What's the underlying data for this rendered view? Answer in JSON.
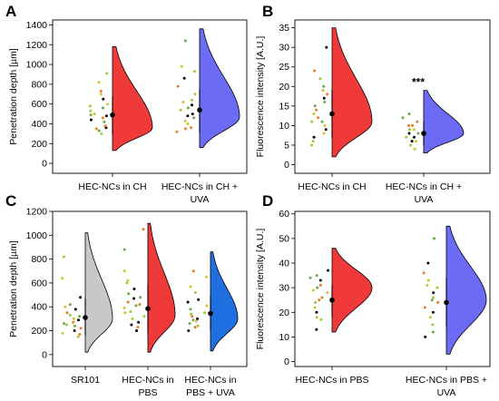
{
  "chart_data": [
    {
      "panel_label": "A",
      "type": "violin",
      "ylabel": "Penetration depth [µm]",
      "ylim": [
        -100,
        1450
      ],
      "yticks": [
        0,
        200,
        400,
        600,
        800,
        1000,
        1200,
        1400
      ],
      "categories": [
        "HEC-NCs in CH",
        "HEC-NCs in CH +\nUVA"
      ],
      "series": [
        {
          "color": "#f03a3a",
          "min": 130,
          "max": 1180,
          "mode": 360,
          "mean": 490,
          "sd_low": 300,
          "sd_high": 680,
          "points": [
            440,
            530,
            600,
            730,
            490,
            360,
            300,
            820,
            350,
            420,
            480,
            580,
            700,
            380,
            330,
            650,
            910,
            500,
            460,
            560
          ]
        },
        {
          "color": "#6b6bf5",
          "min": 160,
          "max": 1360,
          "mode": 470,
          "mean": 540,
          "sd_low": 310,
          "sd_high": 750,
          "points": [
            500,
            540,
            620,
            780,
            1240,
            860,
            930,
            430,
            360,
            460,
            590,
            700,
            400,
            320,
            560,
            480,
            640,
            980,
            350
          ]
        }
      ],
      "significance": ""
    },
    {
      "panel_label": "B",
      "type": "violin",
      "ylabel": "Fluorescence intensity [A.U.]",
      "ylim": [
        -2.2,
        37
      ],
      "yticks": [
        0,
        5,
        10,
        15,
        20,
        25,
        30,
        35
      ],
      "categories": [
        "HEC-NCs in CH",
        "HEC-NCs in CH +\nUVA"
      ],
      "series": [
        {
          "color": "#f03a3a",
          "min": 2,
          "max": 35,
          "mode": 11,
          "mean": 13,
          "sd_low": 7,
          "sd_high": 19,
          "points": [
            9,
            11,
            13,
            18,
            20,
            30,
            6,
            8,
            12,
            15,
            17,
            22,
            10,
            14,
            16,
            7,
            5,
            19,
            24,
            11
          ]
        },
        {
          "color": "#6b6bf5",
          "min": 3,
          "max": 19,
          "mode": 8,
          "mean": 8,
          "sd_low": 5,
          "sd_high": 11,
          "points": [
            6,
            7,
            9,
            10,
            12,
            8,
            5,
            4,
            11,
            13,
            7,
            9,
            6,
            10,
            8
          ]
        }
      ],
      "significance": "***"
    },
    {
      "panel_label": "C",
      "type": "violin",
      "ylabel": "Penetration depth [µm]",
      "ylim": [
        -100,
        1200
      ],
      "yticks": [
        0,
        200,
        400,
        600,
        800,
        1000,
        1200
      ],
      "categories": [
        "SR101",
        "HEC-NCs in\nPBS",
        "HEC-NCs in\nPBS + UVA"
      ],
      "series": [
        {
          "color": "#c8c8c8",
          "min": 20,
          "max": 1020,
          "mode": 300,
          "mean": 310,
          "sd_low": 160,
          "sd_high": 470,
          "points": [
            200,
            250,
            300,
            350,
            420,
            480,
            150,
            180,
            270,
            320,
            380,
            820,
            640,
            220,
            260,
            290,
            330,
            400,
            170,
            240
          ]
        },
        {
          "color": "#f03a3a",
          "min": 20,
          "max": 1100,
          "mode": 330,
          "mean": 385,
          "sd_low": 180,
          "sd_high": 590,
          "points": [
            250,
            300,
            350,
            420,
            480,
            550,
            600,
            700,
            1050,
            880,
            200,
            320,
            390,
            440,
            510,
            270,
            360,
            620,
            230,
            410,
            470
          ]
        },
        {
          "color": "#1f6fe0",
          "min": 30,
          "max": 860,
          "mode": 300,
          "mean": 345,
          "sd_low": 200,
          "sd_high": 490,
          "points": [
            200,
            240,
            280,
            320,
            380,
            440,
            520,
            650,
            700,
            260,
            300,
            350,
            410,
            230,
            290,
            460,
            340,
            570
          ]
        }
      ],
      "significance": ""
    },
    {
      "panel_label": "D",
      "type": "violin",
      "ylabel": "Fluorescence intensity [A.U.]",
      "ylim": [
        -2,
        61
      ],
      "yticks": [
        0,
        10,
        20,
        30,
        40,
        50,
        60
      ],
      "categories": [
        "HEC-NCs in PBS",
        "HEC-NCs in PBS +\nUVA"
      ],
      "series": [
        {
          "color": "#f03a3a",
          "min": 12,
          "max": 46,
          "mode": 30,
          "mean": 25,
          "sd_low": 18,
          "sd_high": 31,
          "points": [
            20,
            24,
            28,
            31,
            34,
            37,
            18,
            22,
            26,
            30,
            33,
            17,
            29,
            25,
            35,
            13
          ]
        },
        {
          "color": "#6b6bf5",
          "min": 3,
          "max": 55,
          "mode": 25,
          "mean": 24,
          "sd_low": 14,
          "sd_high": 34,
          "points": [
            10,
            15,
            18,
            22,
            25,
            28,
            30,
            33,
            36,
            50,
            20,
            26,
            31,
            24,
            12,
            40
          ]
        }
      ],
      "significance": ""
    }
  ]
}
